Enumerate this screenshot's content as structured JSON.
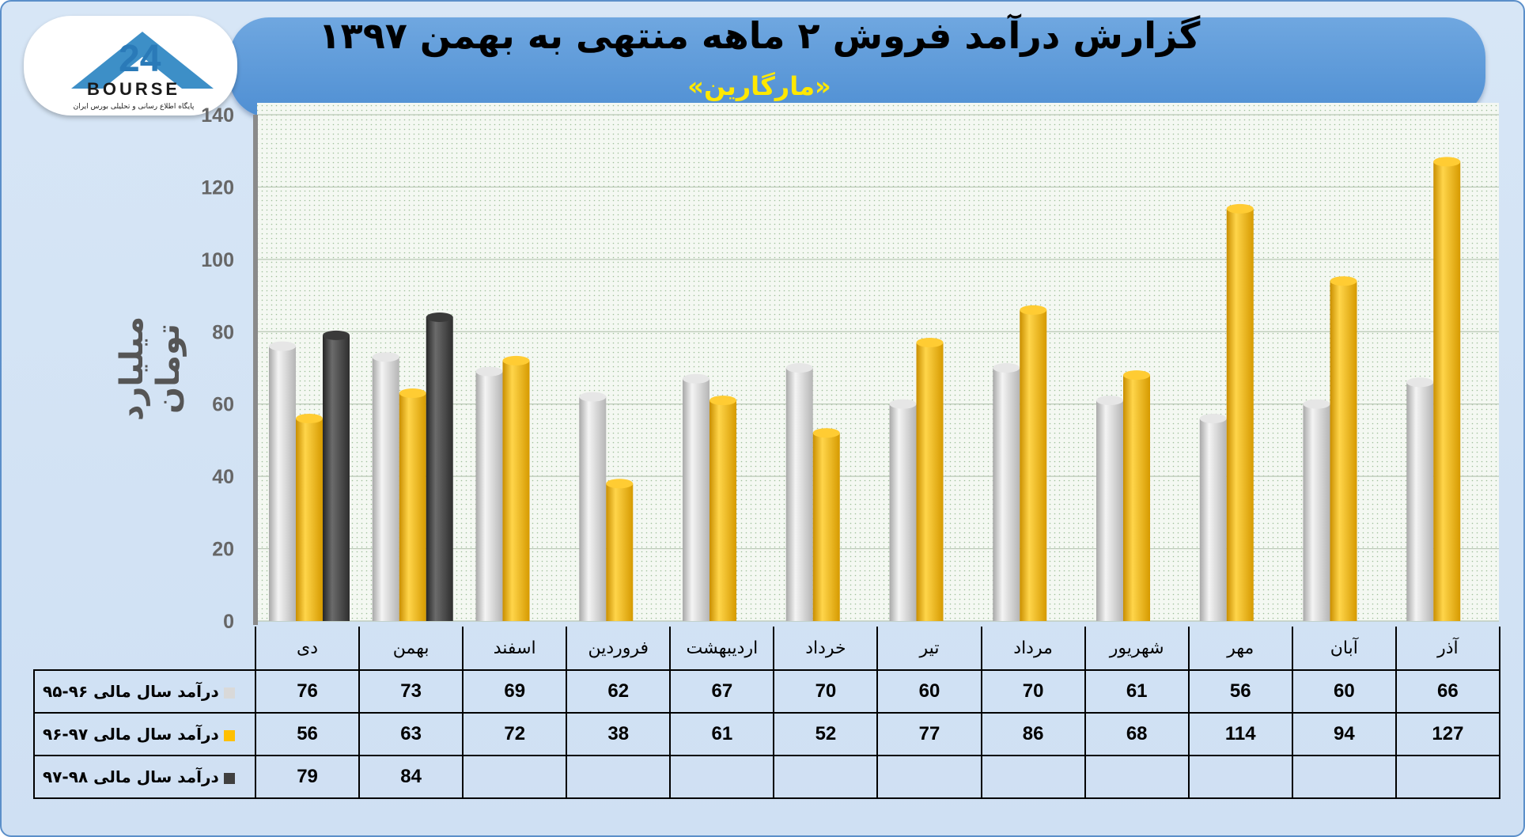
{
  "header": {
    "title": "گزارش درآمد فروش ۲ ماهه منتهی به بهمن ۱۳۹۷",
    "subtitle": "«مارگارین»"
  },
  "logo": {
    "word": "BOURSE",
    "tagline": "پایگاه اطلاع رسانی و تحلیلی بورس ایران",
    "number": "24"
  },
  "chart_data": {
    "type": "bar",
    "ylabel": "میلیارد تومان",
    "ylim": [
      0,
      140
    ],
    "yticks": [
      "0",
      "20",
      "40",
      "60",
      "80",
      "100",
      "120",
      "140"
    ],
    "grid": true,
    "categories": [
      "دی",
      "بهمن",
      "اسفند",
      "فروردین",
      "اردیبهشت",
      "خرداد",
      "تیر",
      "مرداد",
      "شهریور",
      "مهر",
      "آبان",
      "آذر"
    ],
    "series": [
      {
        "name": "درآمد سال مالی ۹۶-۹۵",
        "color": "#d9d9d9",
        "values": [
          76,
          73,
          69,
          62,
          67,
          70,
          60,
          70,
          61,
          56,
          60,
          66
        ]
      },
      {
        "name": "درآمد سال مالی ۹۷-۹۶",
        "color": "#ffc000",
        "values": [
          56,
          63,
          72,
          38,
          61,
          52,
          77,
          86,
          68,
          114,
          94,
          127
        ]
      },
      {
        "name": "درآمد سال مالی ۹۸-۹۷",
        "color": "#404040",
        "values": [
          79,
          84,
          null,
          null,
          null,
          null,
          null,
          null,
          null,
          null,
          null,
          null
        ]
      }
    ]
  }
}
